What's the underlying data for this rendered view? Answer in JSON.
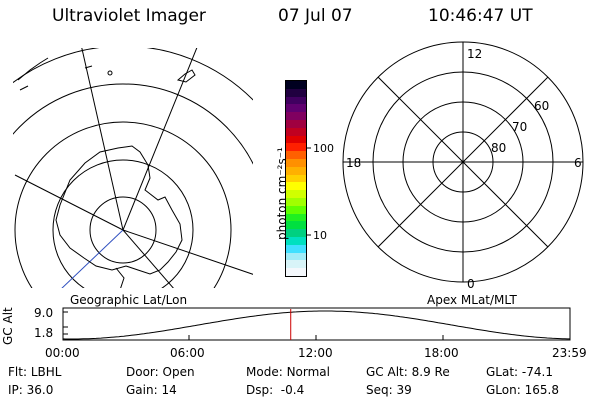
{
  "header": {
    "title": "Ultraviolet Imager",
    "date": "07 Jul 07",
    "time": "10:46:47 UT"
  },
  "left_panel_label": "Geographic Lat/Lon",
  "right_panel_label": "Apex MLat/MLT",
  "colorbar": {
    "unit_label": "photon cm⁻²s⁻¹",
    "ticks": [
      "100",
      "10"
    ],
    "colors": [
      "#000020",
      "#200040",
      "#400060",
      "#600070",
      "#800060",
      "#a00040",
      "#c00020",
      "#e00000",
      "#ff2000",
      "#ff6000",
      "#ff9000",
      "#ffb000",
      "#ffd000",
      "#ffff00",
      "#d0ff00",
      "#a0ff00",
      "#60ff00",
      "#20f020",
      "#00e040",
      "#00d080",
      "#00e0c0",
      "#40e0ff",
      "#a0ecf8",
      "#d8f4f8",
      "#f4f8fc"
    ]
  },
  "mlt_grid": {
    "mlt_labels": [
      "12",
      "18",
      "6",
      "0"
    ],
    "lat_labels": [
      "60",
      "70",
      "80"
    ]
  },
  "altitude_strip": {
    "ylabel": "GC Alt",
    "yticks": [
      "9.0",
      "1.8"
    ],
    "xticks": [
      "00:00",
      "06:00",
      "12:00",
      "18:00",
      "23:59"
    ],
    "marker_hour": 10.78,
    "marker_color": "#cc0000"
  },
  "info": {
    "flt_label": "Flt:",
    "flt_value": "LBHL",
    "door_label": "Door:",
    "door_value": "Open",
    "mode_label": "Mode:",
    "mode_value": "Normal",
    "gcalt_label": "GC Alt:",
    "gcalt_value": "8.9 Re",
    "glat_label": "GLat:",
    "glat_value": "-74.1",
    "ip_label": "IP:",
    "ip_value": "36.0",
    "gain_label": "Gain:",
    "gain_value": "14",
    "dsp_label": "Dsp:",
    "dsp_value": "-0.4",
    "seq_label": "Seq:",
    "seq_value": "39",
    "glon_label": "GLon:",
    "glon_value": "165.8"
  }
}
